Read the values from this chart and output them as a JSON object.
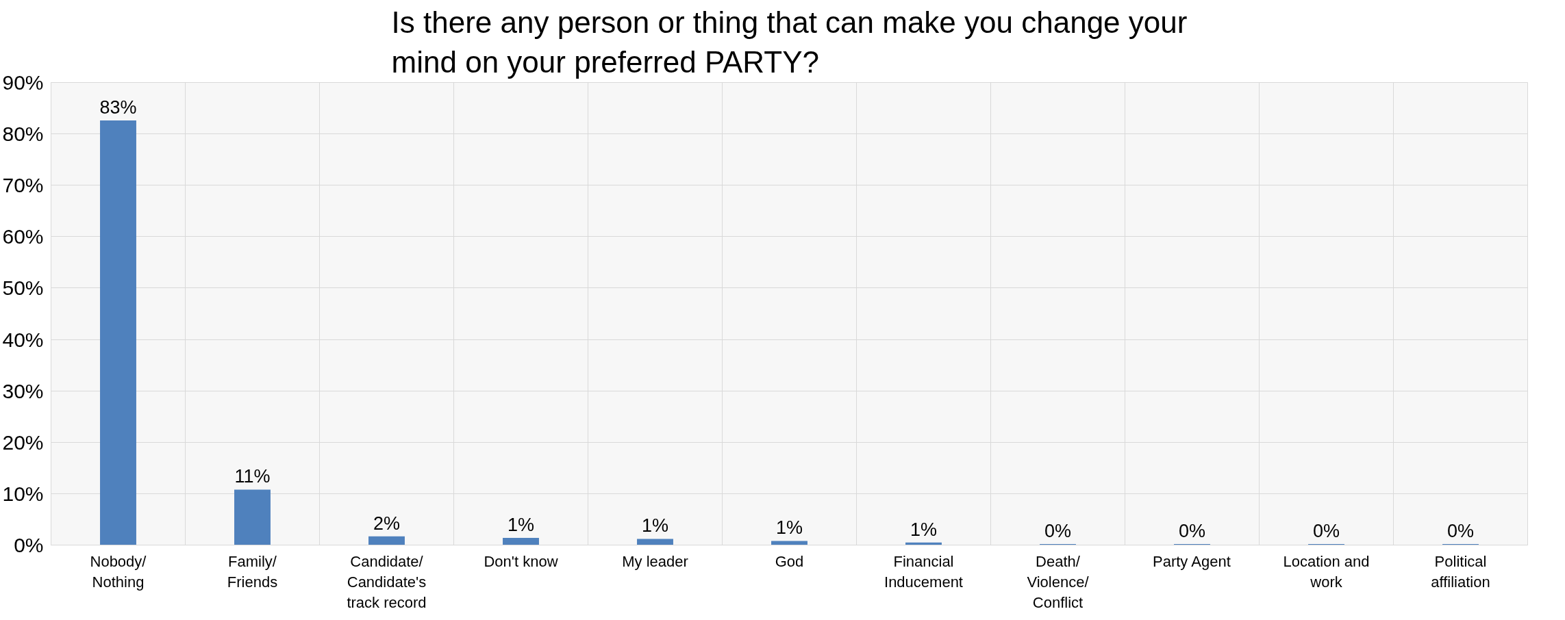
{
  "chart_data": {
    "type": "bar",
    "title": "Is there any person or thing that can make you change your mind on your preferred PARTY?",
    "categories": [
      "Nobody/ Nothing",
      "Family/ Friends",
      "Candidate/ Candidate's track record",
      "Don't know",
      "My leader",
      "God",
      "Financial Inducement",
      "Death/ Violence/ Conflict",
      "Party Agent",
      "Location and work",
      "Political affiliation"
    ],
    "values": [
      82.6,
      10.8,
      1.7,
      1.4,
      1.2,
      0.8,
      0.5,
      0.2,
      0.2,
      0.2,
      0.2
    ],
    "value_labels": [
      "83%",
      "11%",
      "2%",
      "1%",
      "1%",
      "1%",
      "1%",
      "0%",
      "0%",
      "0%",
      "0%"
    ],
    "color": "#4f81bd",
    "ylim": [
      0,
      90
    ],
    "yticks": [
      {
        "value": 0,
        "label": "0%"
      },
      {
        "value": 10,
        "label": "10%"
      },
      {
        "value": 20,
        "label": "20%"
      },
      {
        "value": 30,
        "label": "30%"
      },
      {
        "value": 40,
        "label": "40%"
      },
      {
        "value": 50,
        "label": "50%"
      },
      {
        "value": 60,
        "label": "60%"
      },
      {
        "value": 70,
        "label": "70%"
      },
      {
        "value": 80,
        "label": "80%"
      },
      {
        "value": 90,
        "label": "90%"
      }
    ],
    "grid": true
  }
}
